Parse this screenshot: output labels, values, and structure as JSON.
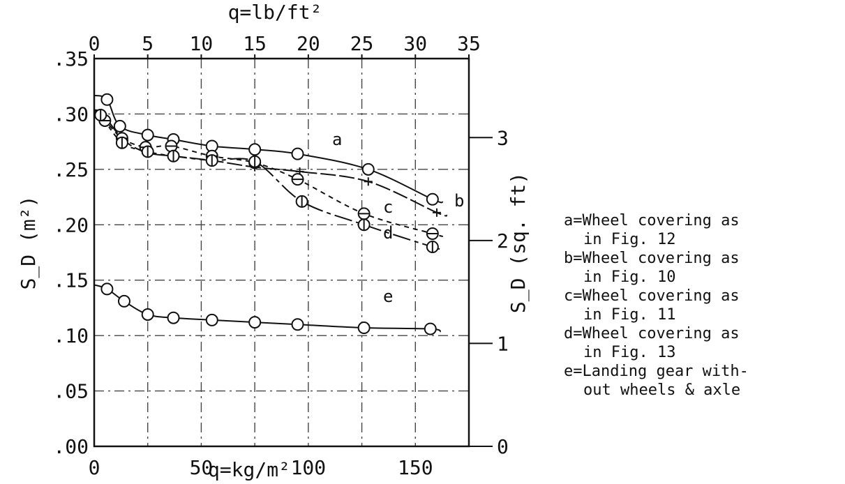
{
  "chart_data": {
    "type": "line",
    "x_bottom": {
      "label": "q=kg/m²",
      "range": [
        0,
        175
      ],
      "ticks": [
        0,
        50,
        100,
        150
      ],
      "tick_labels": [
        "0",
        "50",
        "100",
        "150"
      ]
    },
    "x_top": {
      "label": "q=lb/ft²",
      "range": [
        0,
        35
      ],
      "ticks": [
        0,
        5,
        10,
        15,
        20,
        25,
        30,
        35
      ],
      "tick_labels": [
        "0",
        "5",
        "10",
        "15",
        "20",
        "25",
        "30",
        "35"
      ]
    },
    "y_left": {
      "label": "S_D (m²)",
      "range": [
        0,
        0.35
      ],
      "ticks": [
        0,
        0.05,
        0.1,
        0.15,
        0.2,
        0.25,
        0.3,
        0.35
      ],
      "tick_labels": [
        ".00",
        ".05",
        ".10",
        ".15",
        ".20",
        ".25",
        ".30",
        ".35"
      ]
    },
    "y_right": {
      "label": "S_D (sq. ft)",
      "ticks": [
        0,
        1,
        2,
        3
      ],
      "tick_labels": [
        "0",
        "1",
        "2",
        "3"
      ]
    },
    "grid": true,
    "legend_position": "right",
    "series": [
      {
        "name": "a",
        "marker": "circle",
        "x": [
          6,
          12,
          25,
          37,
          55,
          75,
          95,
          128,
          158
        ],
        "y": [
          0.313,
          0.289,
          0.281,
          0.277,
          0.271,
          0.268,
          0.264,
          0.25,
          0.223
        ]
      },
      {
        "name": "b",
        "marker": "plus",
        "x": [
          4,
          14,
          25,
          37,
          55,
          75,
          96,
          128,
          160
        ],
        "y": [
          0.3,
          0.276,
          0.265,
          0.262,
          0.258,
          0.252,
          0.248,
          0.239,
          0.211
        ]
      },
      {
        "name": "c",
        "marker": "theta",
        "x": [
          5,
          13,
          24,
          36,
          55,
          75,
          95,
          126,
          158
        ],
        "y": [
          0.294,
          0.278,
          0.27,
          0.271,
          0.262,
          0.256,
          0.241,
          0.21,
          0.192
        ]
      },
      {
        "name": "d",
        "marker": "phi",
        "x": [
          3,
          13,
          25,
          37,
          55,
          75,
          97,
          126,
          158
        ],
        "y": [
          0.299,
          0.274,
          0.266,
          0.262,
          0.258,
          0.257,
          0.221,
          0.2,
          0.18
        ]
      },
      {
        "name": "e",
        "marker": "circle",
        "x": [
          6,
          14,
          25,
          37,
          55,
          75,
          95,
          126,
          157
        ],
        "y": [
          0.142,
          0.131,
          0.119,
          0.116,
          0.114,
          0.112,
          0.11,
          0.107,
          0.106
        ]
      }
    ],
    "legend": [
      [
        "a=Wheel covering as",
        "in Fig. 12"
      ],
      [
        "b=Wheel covering as",
        "in Fig. 10"
      ],
      [
        "c=Wheel covering as",
        "in Fig. 11"
      ],
      [
        "d=Wheel covering as",
        "in Fig. 13"
      ],
      [
        "e=Landing gear with-",
        "out wheels & axle"
      ]
    ]
  }
}
